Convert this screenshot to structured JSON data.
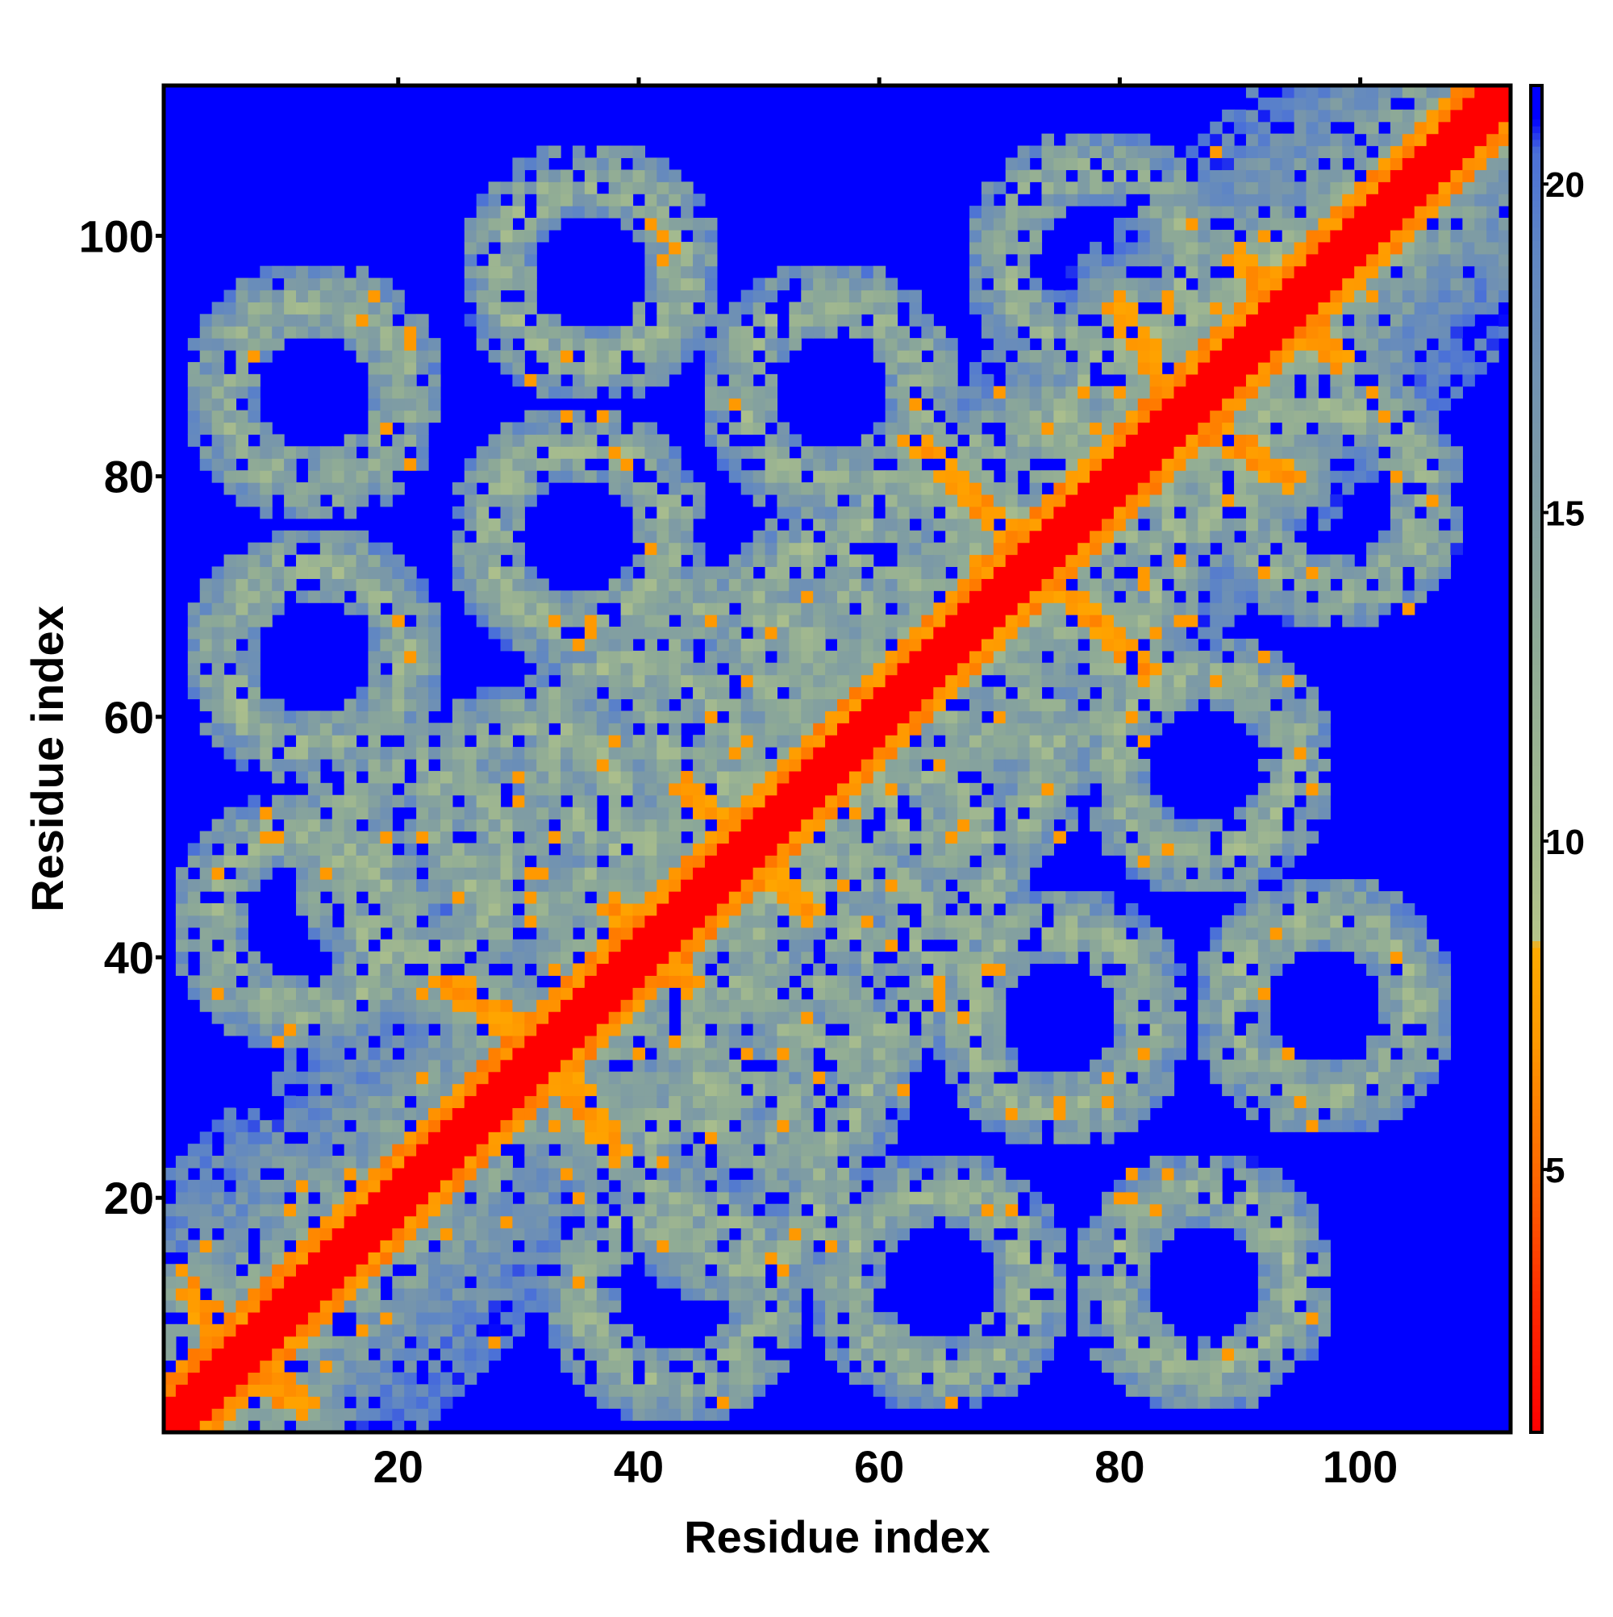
{
  "chart_data": {
    "type": "heatmap",
    "title": "",
    "xlabel": "Residue index",
    "ylabel": "Residue index",
    "n_residues": 112,
    "xlim": [
      1,
      112
    ],
    "ylim": [
      1,
      112
    ],
    "x_ticks": [
      20,
      40,
      60,
      80,
      100
    ],
    "y_ticks": [
      20,
      40,
      60,
      80,
      100
    ],
    "x_tick_labels": [
      "20",
      "40",
      "60",
      "80",
      "100"
    ],
    "y_tick_labels": [
      "20",
      "40",
      "60",
      "80",
      "100"
    ],
    "colorbar": {
      "range": [
        1,
        21.5
      ],
      "ticks": [
        5,
        10,
        15,
        20
      ],
      "tick_labels": [
        "5",
        "10",
        "15",
        "20"
      ],
      "colors": [
        {
          "value": 1.0,
          "color": "#ff0000"
        },
        {
          "value": 3.0,
          "color": "#ff2a00"
        },
        {
          "value": 5.0,
          "color": "#ff6a00"
        },
        {
          "value": 7.0,
          "color": "#ff9900"
        },
        {
          "value": 8.4,
          "color": "#ffaa00"
        },
        {
          "value": 8.5,
          "color": "#b4c48a"
        },
        {
          "value": 10.0,
          "color": "#a5bb8e"
        },
        {
          "value": 13.0,
          "color": "#8eaa96"
        },
        {
          "value": 16.0,
          "color": "#7a98a8"
        },
        {
          "value": 19.0,
          "color": "#5f86c4"
        },
        {
          "value": 20.5,
          "color": "#4a70d8"
        },
        {
          "value": 21.0,
          "color": "#0000ff"
        }
      ]
    },
    "background_value": 21.5,
    "structure": {
      "diagonal_width_residues": 2,
      "diagonal_value": 1.0,
      "near_diagonal_value": 5.5,
      "domain_repeat_residues": 22,
      "contact_ring_centers": [
        [
          12,
          43
        ],
        [
          22,
          48
        ],
        [
          31,
          52
        ],
        [
          40,
          57
        ],
        [
          48,
          62
        ],
        [
          57,
          67
        ],
        [
          65,
          72
        ],
        [
          74,
          77
        ],
        [
          82,
          82
        ],
        [
          89,
          86
        ],
        [
          97,
          92
        ],
        [
          104,
          97
        ],
        [
          13,
          65
        ],
        [
          35,
          75
        ],
        [
          56,
          87
        ],
        [
          78,
          98
        ],
        [
          13,
          87
        ],
        [
          36,
          97
        ]
      ],
      "contact_rings_anti_diagonal": [
        [
          24,
          38,
          36,
          30
        ],
        [
          32,
          27,
          40,
          20
        ],
        [
          38,
          44,
          46,
          34
        ],
        [
          44,
          54,
          52,
          46
        ],
        [
          54,
          52,
          64,
          43
        ],
        [
          64,
          82,
          72,
          74
        ],
        [
          76,
          73,
          84,
          63
        ],
        [
          86,
          83,
          94,
          74
        ],
        [
          80,
          94,
          86,
          84
        ],
        [
          90,
          98,
          98,
          88
        ],
        [
          3,
          12,
          10,
          2
        ]
      ]
    }
  }
}
